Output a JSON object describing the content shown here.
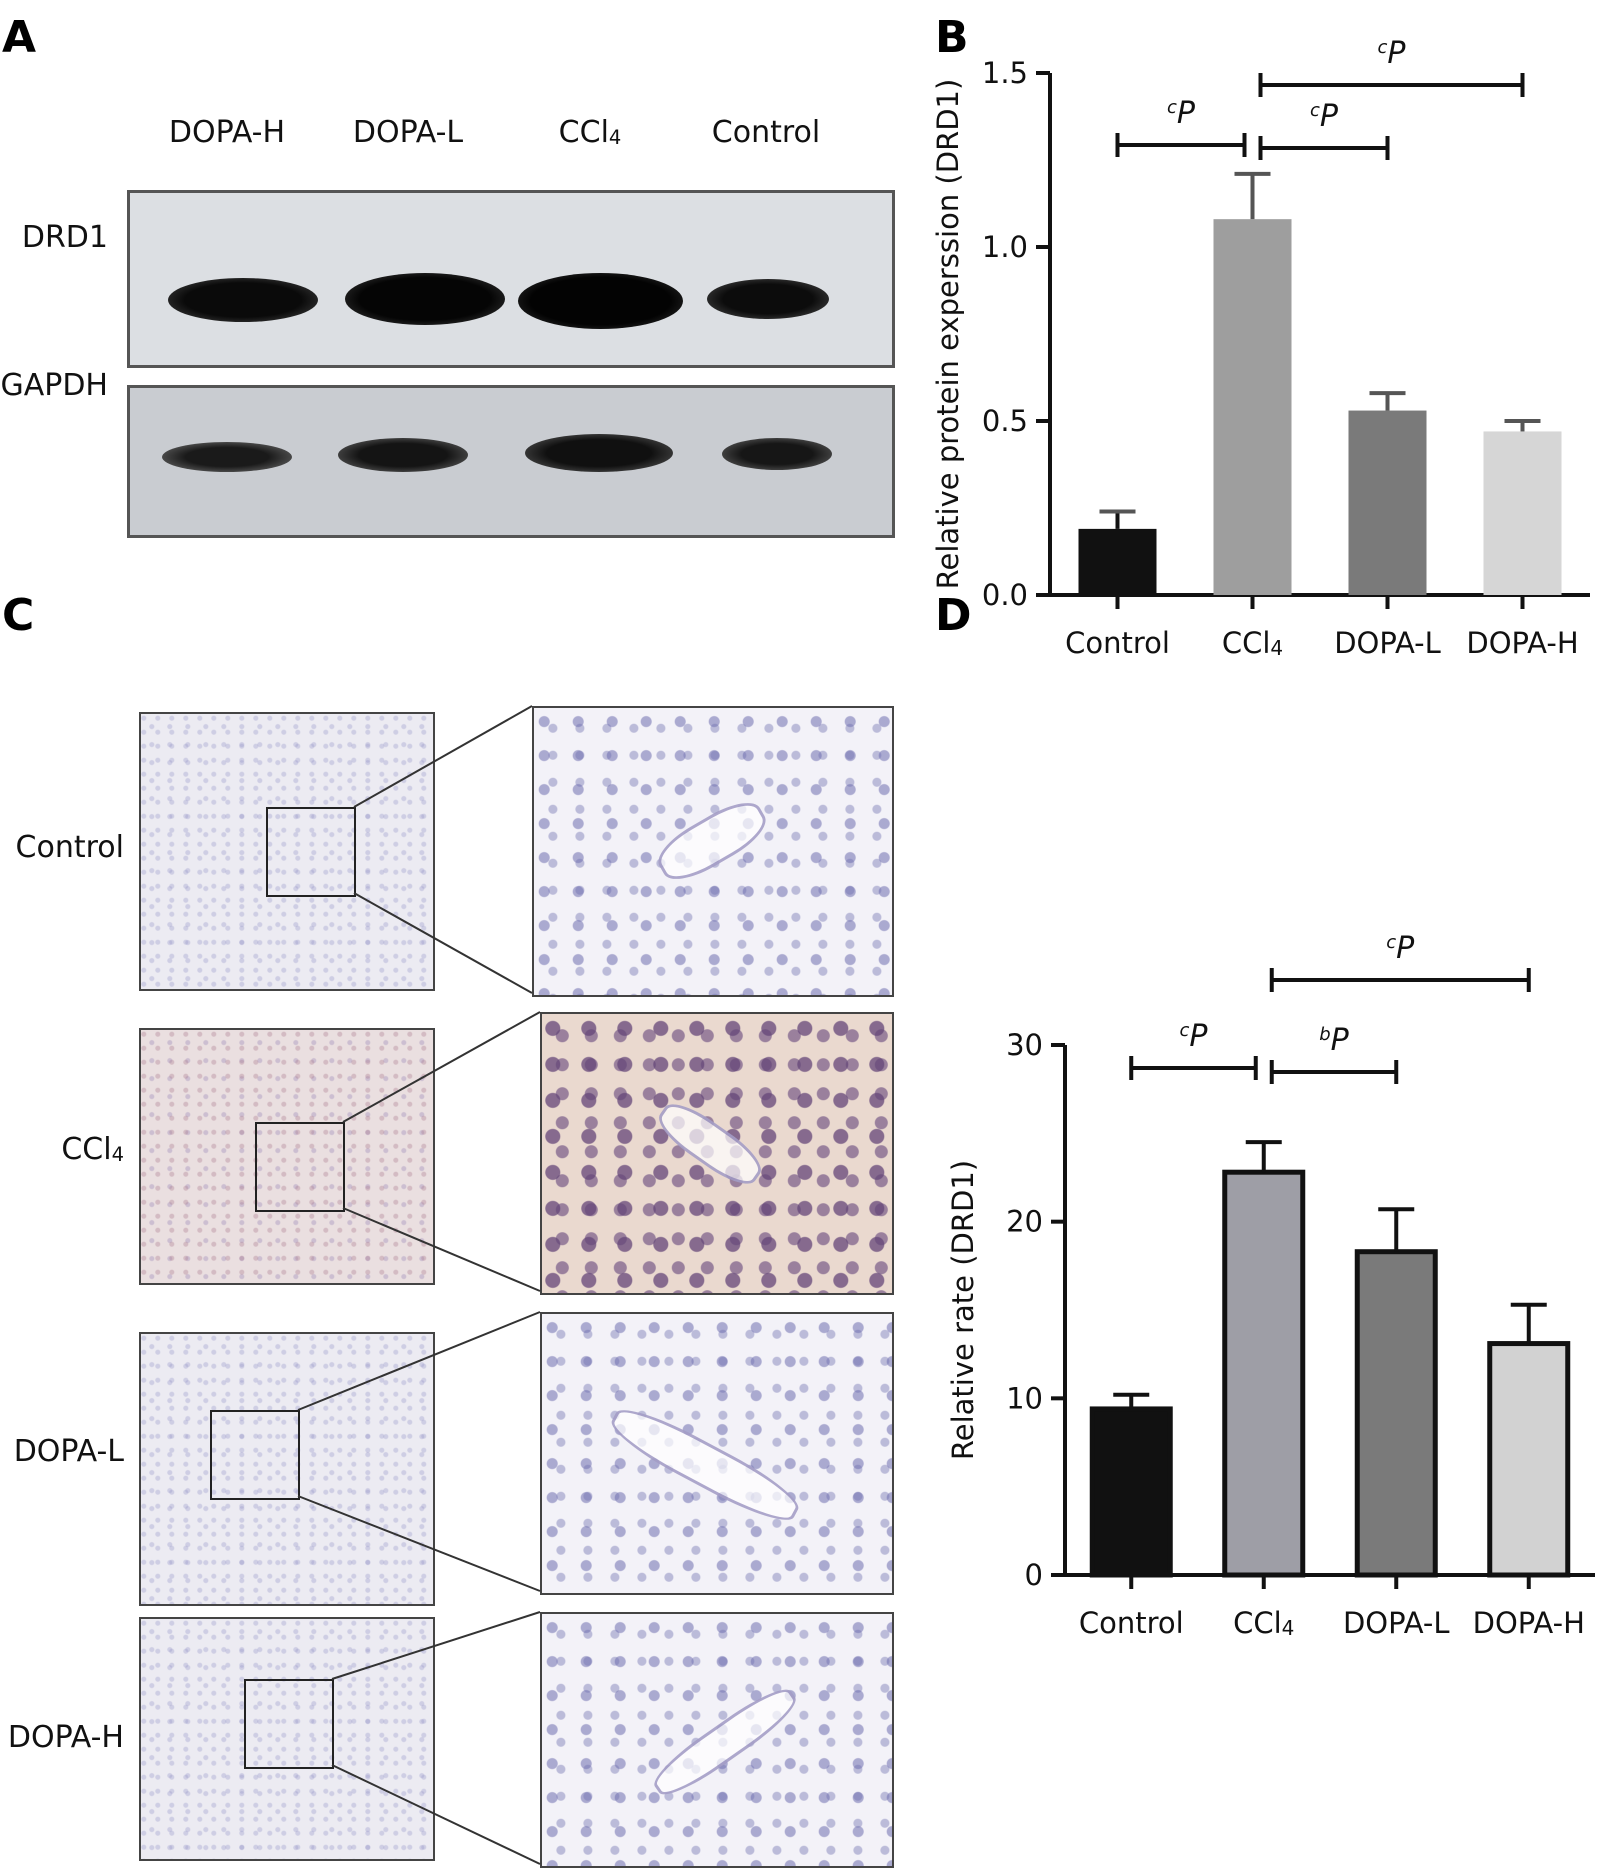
{
  "panels": {
    "a": "A",
    "b": "B",
    "c": "C",
    "d": "D"
  },
  "western_blot": {
    "lanes": [
      "DOPA-H",
      "DOPA-L",
      "CCl4",
      "Control"
    ],
    "rows": [
      "DRD1",
      "GAPDH"
    ]
  },
  "ihc": {
    "rows": [
      "Control",
      "CCl4",
      "DOPA-L",
      "DOPA-H"
    ]
  },
  "chart_data": [
    {
      "type": "bar",
      "panel": "B",
      "categories": [
        "Control",
        "CCl4",
        "DOPA-L",
        "DOPA-H"
      ],
      "values": [
        0.19,
        1.08,
        0.53,
        0.47
      ],
      "errors": [
        0.05,
        0.13,
        0.05,
        0.03
      ],
      "ylabel": "Relative protein experssion (DRD1)",
      "ylim": [
        0,
        1.5
      ],
      "yticks": [
        "0.0",
        "0.5",
        "1.0",
        "1.5"
      ],
      "bar_colors": [
        "#111111",
        "#9e9e9e",
        "#7a7a7a",
        "#d6d6d6"
      ],
      "significance": [
        {
          "from": 0,
          "to": 1,
          "sup": "c",
          "label": "P"
        },
        {
          "from": 1,
          "to": 2,
          "sup": "c",
          "label": "P"
        },
        {
          "from": 1,
          "to": 3,
          "sup": "c",
          "label": "P"
        }
      ]
    },
    {
      "type": "bar",
      "panel": "D",
      "categories": [
        "Control",
        "CCl4",
        "DOPA-L",
        "DOPA-H"
      ],
      "values": [
        9.4,
        22.8,
        18.3,
        13.1
      ],
      "errors": [
        0.8,
        1.7,
        2.4,
        2.2
      ],
      "ylabel": "Relative rate (DRD1)",
      "ylim": [
        0,
        30
      ],
      "yticks": [
        "0",
        "10",
        "20",
        "30"
      ],
      "bar_colors": [
        "#111111",
        "#9e9ea6",
        "#7a7a7a",
        "#d2d2d2"
      ],
      "significance": [
        {
          "from": 0,
          "to": 1,
          "sup": "c",
          "label": "P"
        },
        {
          "from": 1,
          "to": 2,
          "sup": "b",
          "label": "P"
        },
        {
          "from": 1,
          "to": 3,
          "sup": "c",
          "label": "P"
        }
      ]
    }
  ]
}
